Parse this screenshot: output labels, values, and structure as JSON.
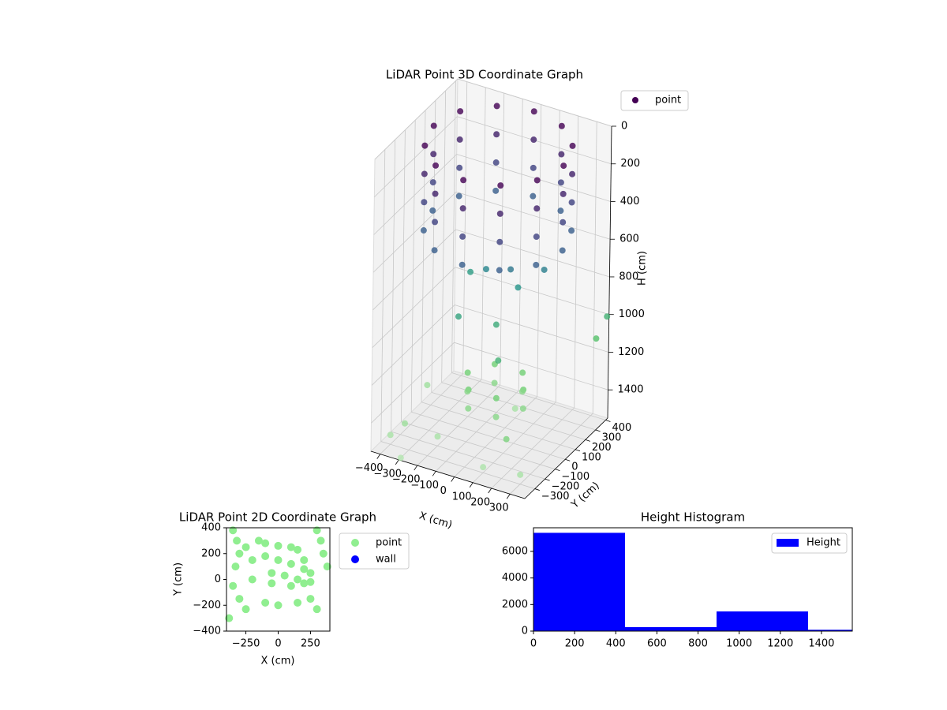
{
  "chart_data": [
    {
      "type": "scatter3d",
      "title": "LiDAR Point 3D Coordinate Graph",
      "x_label": "X (cm)",
      "y_label": "Y (cm)",
      "z_label": "H (cm)",
      "xlim": [
        -450,
        380
      ],
      "ylim": [
        -400,
        420
      ],
      "zlim": [
        1550,
        0
      ],
      "xticks": [
        {
          "value": -400,
          "label": "−400"
        },
        {
          "value": -300,
          "label": "−300"
        },
        {
          "value": -200,
          "label": "−200"
        },
        {
          "value": -100,
          "label": "−100"
        },
        0,
        100,
        200,
        300
      ],
      "yticks": [
        {
          "value": -300,
          "label": "−300"
        },
        {
          "value": -200,
          "label": "−200"
        },
        {
          "value": -100,
          "label": "−100"
        },
        0,
        100,
        200,
        300,
        400
      ],
      "zticks": [
        0,
        200,
        400,
        600,
        800,
        1000,
        1200,
        1400
      ],
      "grid": true,
      "legend": "upper right",
      "cmap": [
        "#440154",
        "#3b528b",
        "#21918c",
        "#5ec962",
        "#b4e6b0"
      ],
      "series": [
        {
          "name": "point",
          "color": "#440154",
          "x": [
            350,
            303,
            175,
            0,
            -175,
            -303,
            -350,
            -303,
            -175,
            0,
            175,
            303,
            350,
            303,
            175,
            0,
            -175,
            -303,
            -350,
            -303,
            -175,
            0,
            175,
            303,
            350,
            303,
            175,
            0,
            -175,
            -303,
            -350,
            -303,
            -175,
            0,
            175,
            303,
            350,
            303,
            175,
            0,
            -175,
            -303,
            -350,
            -303,
            -175,
            0,
            175,
            303,
            150,
            75,
            -75,
            -150,
            -75,
            75,
            150,
            75,
            -75,
            -150,
            -75,
            75,
            100,
            -80,
            50,
            -150,
            0,
            200,
            -250,
            120,
            -400,
            -350,
            300,
            350,
            380,
            -420,
            250,
            -300,
            -200,
            100,
            0
          ],
          "y": [
            0,
            175,
            303,
            350,
            303,
            175,
            0,
            -175,
            -303,
            -350,
            -303,
            -175,
            0,
            175,
            303,
            350,
            303,
            175,
            0,
            -175,
            -303,
            -350,
            -303,
            -175,
            0,
            175,
            303,
            350,
            303,
            175,
            0,
            -175,
            -303,
            -350,
            -303,
            -175,
            0,
            175,
            303,
            350,
            303,
            175,
            0,
            -175,
            -303,
            -350,
            -303,
            -175,
            0,
            130,
            130,
            0,
            -130,
            -130,
            0,
            130,
            130,
            0,
            -130,
            -130,
            -50,
            40,
            120,
            -100,
            0,
            100,
            200,
            -200,
            -300,
            -250,
            -300,
            350,
            400,
            100,
            -350,
            -380,
            -200,
            -300,
            200
          ],
          "z": [
            0,
            0,
            0,
            0,
            0,
            0,
            0,
            0,
            0,
            0,
            0,
            0,
            150,
            150,
            150,
            150,
            150,
            150,
            150,
            150,
            150,
            150,
            150,
            150,
            300,
            300,
            300,
            300,
            300,
            300,
            300,
            300,
            300,
            300,
            300,
            300,
            450,
            450,
            450,
            450,
            450,
            450,
            450,
            450,
            450,
            450,
            450,
            450,
            1250,
            1250,
            1250,
            1250,
            1250,
            1250,
            1350,
            1350,
            1350,
            1350,
            1350,
            1350,
            600,
            700,
            800,
            900,
            950,
            650,
            850,
            1000,
            1500,
            1450,
            1500,
            1100,
            1000,
            1450,
            1300,
            1550,
            1500,
            1520,
            1500
          ]
        }
      ]
    },
    {
      "type": "scatter",
      "title": "LiDAR Point 2D Coordinate Graph",
      "x_label": "X (cm)",
      "y_label": "Y (cm)",
      "xlim": [
        -400,
        400
      ],
      "ylim": [
        -400,
        400
      ],
      "xticks": [
        {
          "value": -250,
          "label": "−250"
        },
        0,
        250
      ],
      "yticks": [
        {
          "value": -400,
          "label": "−400"
        },
        {
          "value": -200,
          "label": "−200"
        },
        0,
        200,
        400
      ],
      "legend": "outside right",
      "series": [
        {
          "name": "point",
          "color": "#90ee90",
          "x": [
            -350,
            -320,
            -300,
            -330,
            -250,
            -150,
            -100,
            0,
            100,
            150,
            200,
            250,
            -200,
            -100,
            0,
            100,
            200,
            -50,
            50,
            150,
            -200,
            -50,
            100,
            250,
            300,
            330,
            350,
            380,
            -350,
            -300,
            -250,
            -100,
            0,
            150,
            300,
            -380,
            250,
            200
          ],
          "y": [
            380,
            300,
            200,
            100,
            250,
            300,
            280,
            260,
            250,
            230,
            150,
            50,
            150,
            180,
            150,
            120,
            80,
            50,
            30,
            0,
            0,
            -30,
            -50,
            -20,
            380,
            300,
            200,
            100,
            -50,
            -150,
            -230,
            -180,
            -200,
            -180,
            -230,
            -300,
            -150,
            -30
          ]
        },
        {
          "name": "wall",
          "color": "#0000ff",
          "x": [],
          "y": []
        }
      ]
    },
    {
      "type": "histogram",
      "title": "Height Histogram",
      "xlim": [
        0,
        1550
      ],
      "ylim": [
        0,
        7780
      ],
      "xticks": [
        0,
        200,
        400,
        600,
        800,
        1000,
        1200,
        1400
      ],
      "yticks": [
        0,
        2000,
        4000,
        6000
      ],
      "legend": "upper right",
      "series": [
        {
          "name": "Height",
          "color": "#0000ff",
          "bins": [
            0,
            445,
            890,
            1335,
            1550
          ],
          "values": [
            7400,
            300,
            1480,
            100
          ]
        }
      ]
    }
  ]
}
